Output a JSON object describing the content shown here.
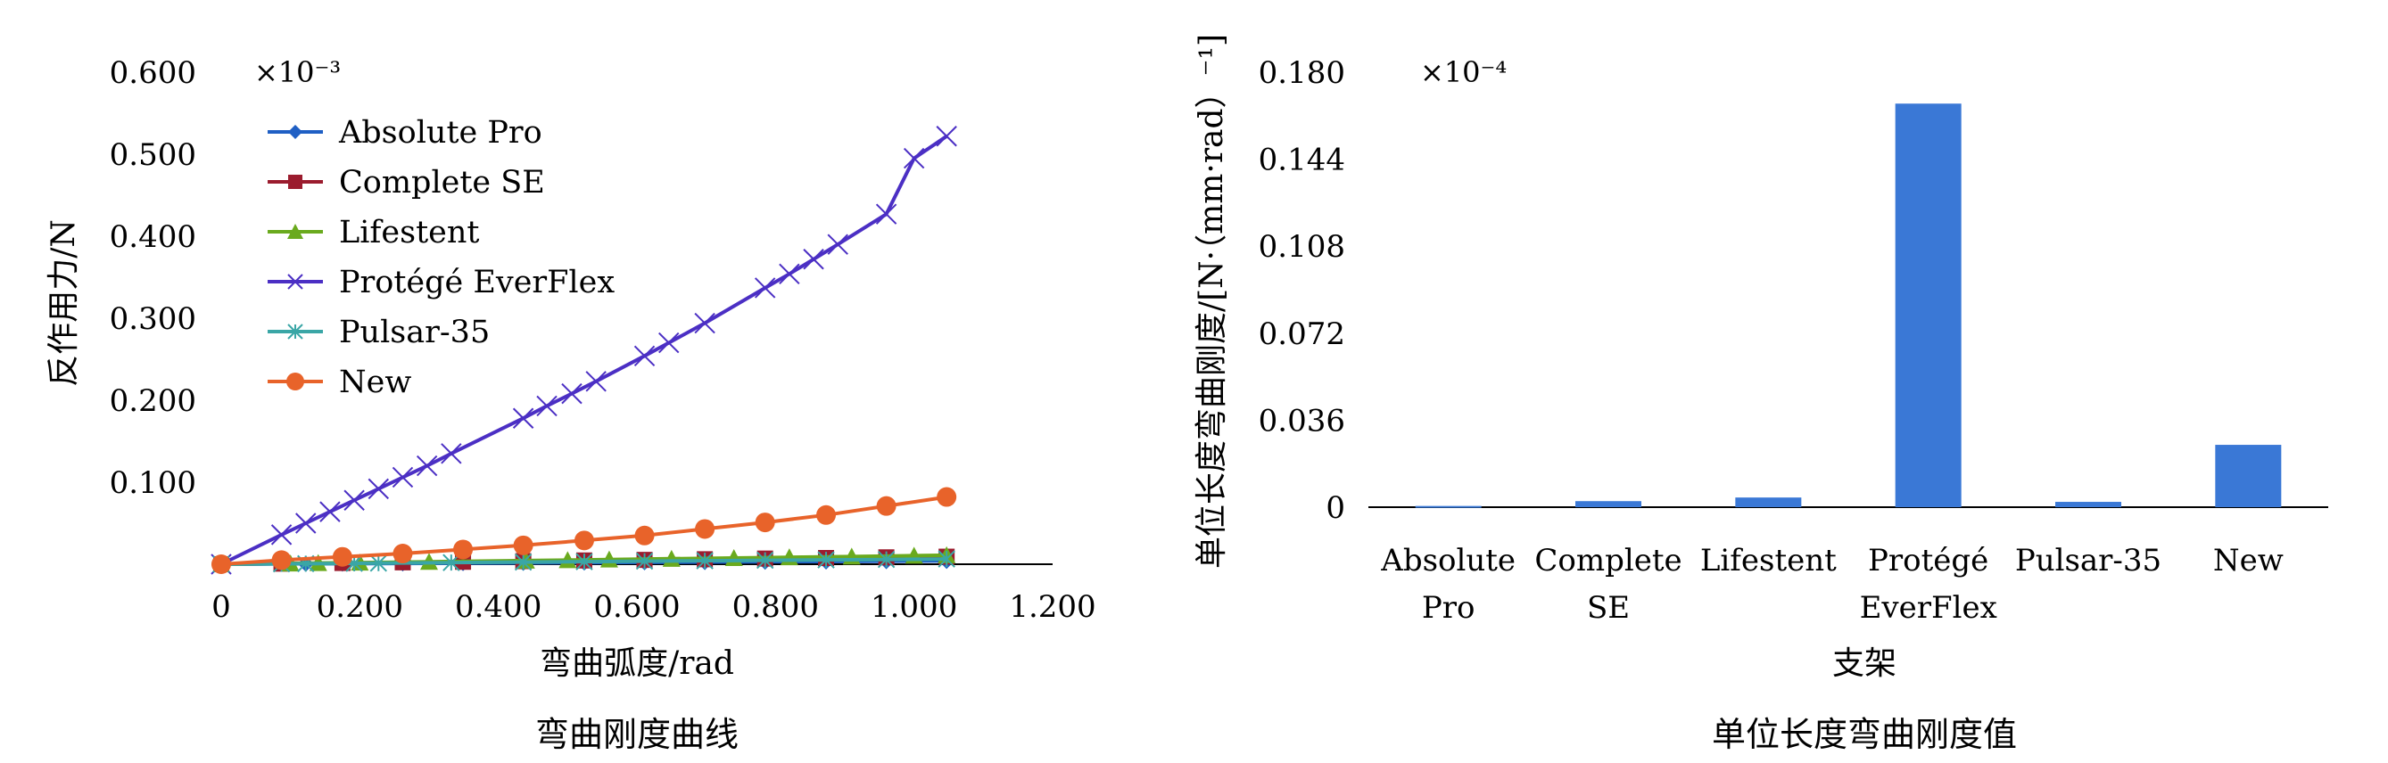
{
  "chart_data": [
    {
      "type": "line",
      "title": "弯曲刚度曲线",
      "xlabel": "弯曲弧度/rad",
      "ylabel": "反作用力/N",
      "y_multiplier": "×10⁻³",
      "xlim": [
        0,
        1.2
      ],
      "ylim": [
        0,
        0.6
      ],
      "x_ticks": [
        "0",
        "0.200",
        "0.400",
        "0.600",
        "0.800",
        "1.000",
        "1.200"
      ],
      "y_ticks": [
        "0.600",
        "0.500",
        "0.400",
        "0.300",
        "0.200",
        "0.100"
      ],
      "legend_position": "top-left",
      "series": [
        {
          "name": "Absolute Pro",
          "color": "#1f5fc4",
          "marker": "diamond",
          "points": [
            [
              0,
              0
            ],
            [
              0.087,
              0.0004
            ],
            [
              0.122,
              0.0005
            ],
            [
              0.175,
              0.0007
            ],
            [
              0.262,
              0.001
            ],
            [
              0.349,
              0.0013
            ],
            [
              0.436,
              0.0016
            ],
            [
              0.524,
              0.002
            ],
            [
              0.611,
              0.0023
            ],
            [
              0.698,
              0.0026
            ],
            [
              0.785,
              0.003
            ],
            [
              0.873,
              0.0033
            ],
            [
              0.96,
              0.0037
            ],
            [
              1.047,
              0.004
            ]
          ]
        },
        {
          "name": "Complete SE",
          "color": "#9b1c2e",
          "marker": "square",
          "points": [
            [
              0,
              0
            ],
            [
              0.087,
              0.0007
            ],
            [
              0.175,
              0.0015
            ],
            [
              0.262,
              0.0023
            ],
            [
              0.349,
              0.003
            ],
            [
              0.436,
              0.0038
            ],
            [
              0.524,
              0.0046
            ],
            [
              0.611,
              0.0053
            ],
            [
              0.698,
              0.0061
            ],
            [
              0.785,
              0.0069
            ],
            [
              0.873,
              0.0076
            ],
            [
              0.96,
              0.0084
            ],
            [
              1.047,
              0.0092
            ]
          ]
        },
        {
          "name": "Lifestent",
          "color": "#6aaa1e",
          "marker": "triangle",
          "points": [
            [
              0,
              0
            ],
            [
              0.1,
              0.001
            ],
            [
              0.14,
              0.0015
            ],
            [
              0.2,
              0.002
            ],
            [
              0.3,
              0.003
            ],
            [
              0.44,
              0.0045
            ],
            [
              0.5,
              0.005
            ],
            [
              0.56,
              0.0058
            ],
            [
              0.65,
              0.0067
            ],
            [
              0.74,
              0.0076
            ],
            [
              0.82,
              0.0085
            ],
            [
              0.91,
              0.0094
            ],
            [
              1.0,
              0.0104
            ],
            [
              1.047,
              0.011
            ]
          ]
        },
        {
          "name": "Protégé EverFlex",
          "color": "#4b2fc4",
          "marker": "x",
          "points": [
            [
              0,
              0
            ],
            [
              0.087,
              0.036
            ],
            [
              0.122,
              0.05
            ],
            [
              0.157,
              0.064
            ],
            [
              0.192,
              0.078
            ],
            [
              0.227,
              0.092
            ],
            [
              0.262,
              0.106
            ],
            [
              0.297,
              0.12
            ],
            [
              0.332,
              0.135
            ],
            [
              0.436,
              0.178
            ],
            [
              0.47,
              0.193
            ],
            [
              0.506,
              0.208
            ],
            [
              0.541,
              0.223
            ],
            [
              0.611,
              0.254
            ],
            [
              0.646,
              0.27
            ],
            [
              0.698,
              0.294
            ],
            [
              0.785,
              0.337
            ],
            [
              0.82,
              0.354
            ],
            [
              0.855,
              0.372
            ],
            [
              0.89,
              0.39
            ],
            [
              0.96,
              0.427
            ],
            [
              1.0,
              0.495
            ],
            [
              1.047,
              0.522
            ]
          ]
        },
        {
          "name": "Pulsar-35",
          "color": "#3aa6a6",
          "marker": "asterisk",
          "points": [
            [
              0,
              0
            ],
            [
              0.087,
              0.0005
            ],
            [
              0.122,
              0.0007
            ],
            [
              0.192,
              0.0011
            ],
            [
              0.227,
              0.0013
            ],
            [
              0.332,
              0.002
            ],
            [
              0.436,
              0.0026
            ],
            [
              0.524,
              0.0031
            ],
            [
              0.611,
              0.0037
            ],
            [
              0.698,
              0.0042
            ],
            [
              0.785,
              0.0048
            ],
            [
              0.873,
              0.0053
            ],
            [
              0.96,
              0.0058
            ],
            [
              1.047,
              0.0064
            ]
          ]
        },
        {
          "name": "New",
          "color": "#e8632a",
          "marker": "circle",
          "points": [
            [
              0,
              0
            ],
            [
              0.087,
              0.005
            ],
            [
              0.175,
              0.009
            ],
            [
              0.262,
              0.013
            ],
            [
              0.349,
              0.018
            ],
            [
              0.436,
              0.023
            ],
            [
              0.524,
              0.029
            ],
            [
              0.611,
              0.035
            ],
            [
              0.698,
              0.043
            ],
            [
              0.785,
              0.051
            ],
            [
              0.873,
              0.06
            ],
            [
              0.96,
              0.071
            ],
            [
              1.047,
              0.082
            ]
          ]
        }
      ]
    },
    {
      "type": "bar",
      "title": "单位长度弯曲刚度值",
      "xlabel": "支架",
      "ylabel": "单位长度弯曲刚度/[N·（mm·rad）⁻¹]",
      "y_multiplier": "×10⁻⁴",
      "ylim": [
        0,
        0.18
      ],
      "y_ticks": [
        "0.180",
        "0.144",
        "0.108",
        "0.072",
        "0.036",
        "0"
      ],
      "categories": [
        [
          "Absolute",
          "Pro"
        ],
        [
          "Complete",
          "SE"
        ],
        [
          "Lifestent"
        ],
        [
          "Protégé",
          "EverFlex"
        ],
        [
          "Pulsar-35"
        ],
        [
          "New"
        ]
      ],
      "values": [
        0.0005,
        0.0025,
        0.004,
        0.167,
        0.0022,
        0.0258
      ],
      "color": "#3a78d6"
    }
  ]
}
